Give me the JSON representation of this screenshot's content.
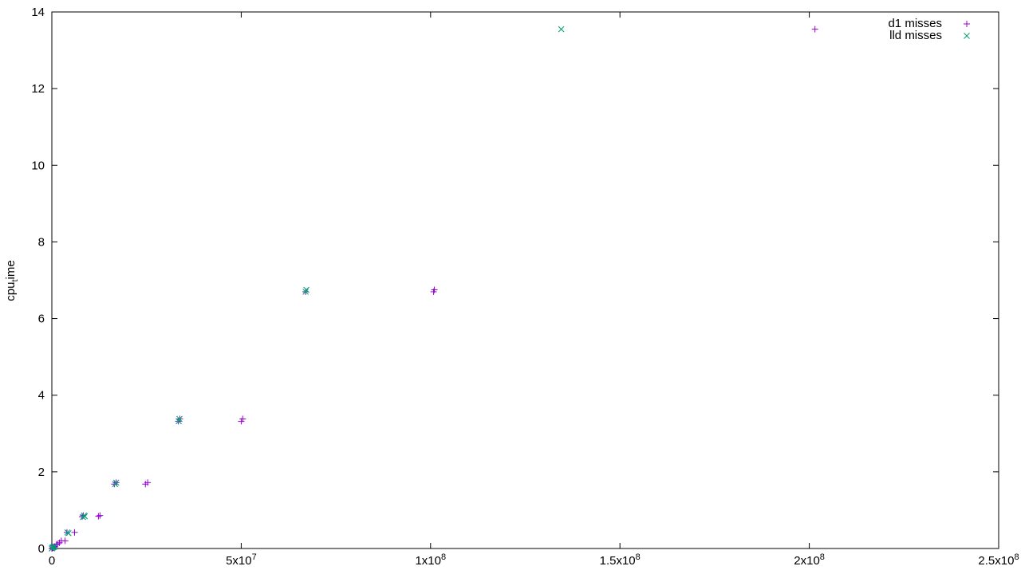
{
  "chart_data": {
    "type": "scatter",
    "title": "",
    "xlabel": "",
    "ylabel": "cpu",
    "ylabel_subscript": "t",
    "ylabel_suffix": "ime",
    "xlim": [
      0,
      250000000
    ],
    "ylim": [
      0,
      14
    ],
    "grid": false,
    "legend_position": "top-right",
    "x_ticks": [
      {
        "value": 0,
        "base": "0",
        "exp": ""
      },
      {
        "value": 50000000,
        "base": "5x10",
        "exp": "7"
      },
      {
        "value": 100000000,
        "base": "1x10",
        "exp": "8"
      },
      {
        "value": 150000000,
        "base": "1.5x10",
        "exp": "8"
      },
      {
        "value": 200000000,
        "base": "2x10",
        "exp": "8"
      },
      {
        "value": 250000000,
        "base": "2.5x10",
        "exp": "8"
      }
    ],
    "y_ticks": [
      0,
      2,
      4,
      6,
      8,
      10,
      12,
      14
    ],
    "series": [
      {
        "name": "d1 misses",
        "marker": "plus",
        "color": "#9400d3",
        "points": [
          [
            0,
            0
          ],
          [
            150000,
            0.01
          ],
          [
            300000,
            0.02
          ],
          [
            600000,
            0.05
          ],
          [
            800000,
            0.04
          ],
          [
            1200000,
            0.1
          ],
          [
            1500000,
            0.12
          ],
          [
            2000000,
            0.15
          ],
          [
            2500000,
            0.2
          ],
          [
            3500000,
            0.2
          ],
          [
            4000000,
            0.42
          ],
          [
            6000000,
            0.42
          ],
          [
            8000000,
            0.83
          ],
          [
            8300000,
            0.86
          ],
          [
            12300000,
            0.84
          ],
          [
            12700000,
            0.86
          ],
          [
            16500000,
            1.68
          ],
          [
            17000000,
            1.72
          ],
          [
            24700000,
            1.68
          ],
          [
            25300000,
            1.72
          ],
          [
            33400000,
            3.32
          ],
          [
            33800000,
            3.38
          ],
          [
            50000000,
            3.32
          ],
          [
            50400000,
            3.38
          ],
          [
            67000000,
            6.7
          ],
          [
            100800000,
            6.7
          ],
          [
            101000000,
            6.75
          ],
          [
            201500000,
            13.55
          ]
        ]
      },
      {
        "name": "lld misses",
        "marker": "cross",
        "color": "#009e73",
        "points": [
          [
            0,
            0
          ],
          [
            150000,
            0.02
          ],
          [
            300000,
            0.03
          ],
          [
            500000,
            0.04
          ],
          [
            800000,
            0.05
          ],
          [
            4100000,
            0.42
          ],
          [
            4400000,
            0.4
          ],
          [
            8200000,
            0.82
          ],
          [
            8500000,
            0.86
          ],
          [
            8700000,
            0.84
          ],
          [
            16700000,
            1.68
          ],
          [
            17000000,
            1.72
          ],
          [
            33500000,
            3.32
          ],
          [
            33700000,
            3.38
          ],
          [
            67000000,
            6.7
          ],
          [
            67200000,
            6.75
          ],
          [
            134500000,
            13.55
          ]
        ]
      }
    ]
  }
}
